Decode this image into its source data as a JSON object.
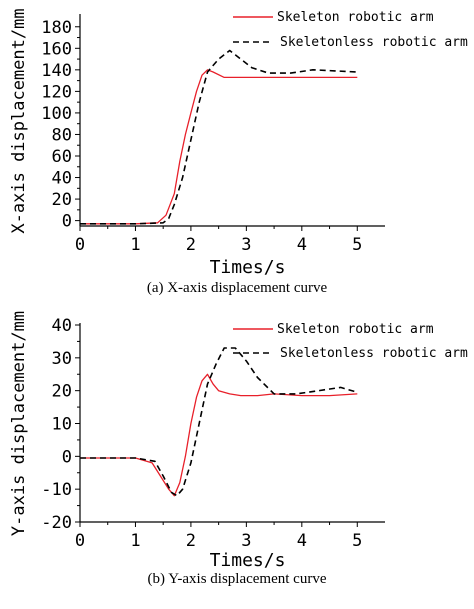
{
  "chart_data": [
    {
      "type": "line",
      "caption": "(a) X-axis displacement curve",
      "xlabel": "Times/s",
      "ylabel": "X-axis displacement/mm",
      "xlim": [
        0,
        5.5
      ],
      "ylim": [
        -5,
        190
      ],
      "xticks": [
        0,
        1,
        2,
        3,
        4,
        5
      ],
      "yticks": [
        0,
        20,
        40,
        60,
        80,
        100,
        120,
        140,
        160,
        180
      ],
      "legend_position": "top-right",
      "grid": false,
      "series": [
        {
          "name": "Skeleton robotic arm",
          "style": "solid",
          "color": "#e8202a",
          "x": [
            0,
            0.5,
            1.0,
            1.4,
            1.55,
            1.7,
            1.8,
            1.9,
            2.0,
            2.1,
            2.2,
            2.3,
            2.4,
            2.6,
            2.8,
            3.0,
            3.5,
            4.0,
            4.5,
            5.0
          ],
          "y": [
            -3,
            -3,
            -3,
            -2,
            5,
            25,
            55,
            80,
            100,
            120,
            135,
            140,
            138,
            133,
            133,
            133,
            133,
            133,
            133,
            133
          ]
        },
        {
          "name": "Skeletonless robotic arm",
          "style": "dashed",
          "color": "#000000",
          "x": [
            0,
            0.5,
            1.0,
            1.5,
            1.6,
            1.7,
            1.85,
            2.0,
            2.15,
            2.3,
            2.5,
            2.7,
            2.9,
            3.1,
            3.4,
            3.8,
            4.2,
            4.6,
            5.0
          ],
          "y": [
            -3,
            -3,
            -3,
            -2,
            2,
            15,
            40,
            75,
            110,
            138,
            150,
            158,
            150,
            142,
            137,
            137,
            140,
            139,
            138
          ]
        }
      ]
    },
    {
      "type": "line",
      "caption": "(b) Y-axis displacement curve",
      "xlabel": "Times/s",
      "ylabel": "Y-axis displacement/mm",
      "xlim": [
        0,
        5.5
      ],
      "ylim": [
        -20,
        40
      ],
      "xticks": [
        0,
        1,
        2,
        3,
        4,
        5
      ],
      "yticks": [
        -20,
        -10,
        0,
        10,
        20,
        30,
        40
      ],
      "legend_position": "top-right",
      "grid": false,
      "series": [
        {
          "name": "Skeleton robotic arm",
          "style": "solid",
          "color": "#e8202a",
          "x": [
            0,
            0.5,
            1.0,
            1.3,
            1.45,
            1.6,
            1.7,
            1.8,
            1.9,
            2.0,
            2.1,
            2.2,
            2.3,
            2.4,
            2.5,
            2.7,
            2.9,
            3.2,
            3.5,
            4.0,
            4.5,
            5.0
          ],
          "y": [
            -0.5,
            -0.5,
            -0.5,
            -2,
            -6,
            -10,
            -12,
            -8,
            0,
            10,
            18,
            23,
            25,
            22,
            20,
            19,
            18.5,
            18.5,
            19,
            18.5,
            18.5,
            19
          ]
        },
        {
          "name": "Skeletonless robotic arm",
          "style": "dashed",
          "color": "#000000",
          "x": [
            0,
            0.5,
            1.0,
            1.35,
            1.5,
            1.65,
            1.75,
            1.85,
            2.0,
            2.15,
            2.3,
            2.45,
            2.6,
            2.8,
            3.0,
            3.2,
            3.5,
            3.9,
            4.3,
            4.7,
            5.0
          ],
          "y": [
            -0.5,
            -0.5,
            -0.5,
            -1.5,
            -6,
            -11,
            -12,
            -10,
            -2,
            10,
            22,
            28,
            33,
            33,
            29,
            24,
            19,
            19,
            20,
            21,
            19.5
          ]
        }
      ]
    }
  ]
}
